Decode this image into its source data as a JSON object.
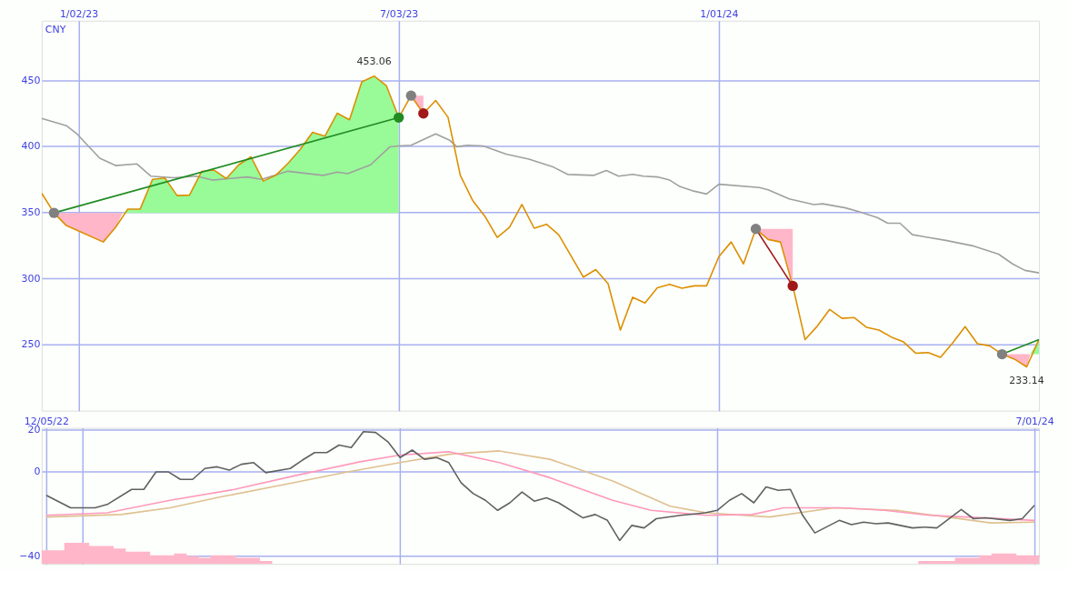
{
  "chart_data": [
    {
      "type": "line",
      "ylabel": "CNY",
      "xlim": [
        "2022-12-12",
        "2024-07-01"
      ],
      "ylim": [
        200,
        495
      ],
      "yticks": [
        250,
        300,
        350,
        400,
        450
      ],
      "xticks": [
        {
          "value": "2023-01-02",
          "label": "1/02/23"
        },
        {
          "value": "2023-07-03",
          "label": "7/03/23"
        },
        {
          "value": "2024-01-01",
          "label": "1/01/24"
        }
      ],
      "grid": true,
      "legend": false,
      "annotations": [
        {
          "text": "453.06",
          "x": "2023-06-19",
          "y": 453.06
        },
        {
          "text": "233.14",
          "x": "2024-06-24",
          "y": 233.14
        }
      ],
      "series": [
        {
          "color": "#98fb98",
          "x": [
            "2023-01-27",
            "2023-01-30",
            "2023-02-06",
            "2023-02-13",
            "2023-02-20",
            "2023-02-27",
            "2023-03-06",
            "2023-03-13",
            "2023-03-20",
            "2023-03-27",
            "2023-04-03",
            "2023-04-10",
            "2023-04-17",
            "2023-04-24",
            "2023-05-01",
            "2023-05-08",
            "2023-05-15",
            "2023-05-22",
            "2023-05-29",
            "2023-06-05",
            "2023-06-12",
            "2023-06-19",
            "2023-06-26",
            "2023-07-03"
          ],
          "values": [
            null,
            null,
            null,
            null,
            null,
            null,
            null,
            null,
            null,
            null,
            null,
            null,
            null,
            null,
            null,
            null,
            null,
            null,
            null,
            null,
            null,
            null,
            null,
            null
          ],
          "upper": [
            349.6,
            352.5,
            352.5,
            375,
            376,
            362.7,
            363,
            381,
            382,
            375.6,
            386,
            392,
            373.7,
            378,
            387,
            397.7,
            410.6,
            407.6,
            425,
            420,
            448.8,
            453.1,
            445.7,
            421.7
          ],
          "lower": [
            349.6,
            349.6,
            349.6,
            349.6,
            349.6,
            349.6,
            349.6,
            349.6,
            349.6,
            349.6,
            349.6,
            349.6,
            349.6,
            349.6,
            349.6,
            349.6,
            349.6,
            349.6,
            349.6,
            349.6,
            349.6,
            349.6,
            349.6,
            349.6
          ]
        },
        {
          "color": "#ffb6c8",
          "x": [
            "2022-12-19",
            "2022-12-26",
            "2023-01-16",
            "2023-01-23",
            "2023-01-27"
          ],
          "values": [
            null,
            null,
            null,
            null,
            null
          ],
          "lower": [
            349.6,
            340,
            327.6,
            338.7,
            349.6
          ],
          "upper": [
            349.6,
            349.6,
            349.6,
            349.6,
            349.6
          ]
        },
        {
          "color": "#ffb6c8",
          "x": [
            "2023-07-10",
            "2023-07-17"
          ],
          "values": [
            null,
            null
          ],
          "lower": [
            438.3,
            424.8
          ],
          "upper": [
            438.3,
            438.3
          ]
        },
        {
          "color": "#ffb6c8",
          "x": [
            "2024-01-22",
            "2024-01-29",
            "2024-02-05",
            "2024-02-12"
          ],
          "values": [
            null,
            null,
            null,
            null
          ],
          "lower": [
            337.5,
            329.5,
            327.6,
            294.4
          ],
          "upper": [
            337.5,
            337.5,
            337.5,
            337.5
          ]
        },
        {
          "color": "#ffb6c8",
          "x": [
            "2024-06-10",
            "2024-06-17",
            "2024-06-24",
            "2024-06-26"
          ],
          "values": [
            null,
            null,
            null,
            null
          ],
          "lower": [
            242.7,
            239,
            233.1,
            242.7
          ],
          "upper": [
            242.7,
            242.7,
            242.7,
            242.7
          ]
        },
        {
          "color": "#98fb98",
          "x": [
            "2024-06-26",
            "2024-07-01"
          ],
          "values": [
            null,
            null
          ],
          "upper": [
            242.7,
            253.8
          ],
          "lower": [
            242.7,
            242.7
          ]
        },
        {
          "color": "#a0a0a0",
          "x": [
            "2022-12-12",
            "2022-12-26",
            "2023-01-01",
            "2023-01-14",
            "2023-01-23",
            "2023-02-04",
            "2023-02-12",
            "2023-02-25",
            "2023-03-10",
            "2023-03-19",
            "2023-04-08",
            "2023-04-16",
            "2023-05-01",
            "2023-05-21",
            "2023-05-29",
            "2023-06-04",
            "2023-06-17",
            "2023-06-28",
            "2023-07-03",
            "2023-07-10",
            "2023-07-24",
            "2023-08-01",
            "2023-08-05",
            "2023-08-11",
            "2023-08-20",
            "2023-09-02",
            "2023-09-15",
            "2023-09-29",
            "2023-10-07",
            "2023-10-22",
            "2023-10-29",
            "2023-11-05",
            "2023-11-13",
            "2023-11-19",
            "2023-11-27",
            "2023-12-04",
            "2023-12-10",
            "2023-12-17",
            "2023-12-25",
            "2024-01-01",
            "2024-01-24",
            "2024-01-29",
            "2024-02-10",
            "2024-02-24",
            "2024-02-29",
            "2024-03-13",
            "2024-03-21",
            "2024-03-31",
            "2024-04-06",
            "2024-04-13",
            "2024-04-20",
            "2024-05-09",
            "2024-05-25",
            "2024-06-08",
            "2024-06-16",
            "2024-06-23",
            "2024-07-01"
          ],
          "values": [
            421.1,
            415.6,
            409.4,
            391.0,
            385.4,
            386.7,
            377.4,
            376.2,
            377.4,
            374.4,
            376.8,
            375.0,
            381.1,
            378.0,
            380.5,
            379.3,
            386.0,
            399.6,
            400.2,
            400.8,
            409.4,
            404.5,
            399.6,
            400.8,
            400.2,
            394.0,
            390.3,
            384.2,
            378.7,
            378.0,
            381.7,
            377.4,
            378.7,
            377.4,
            376.8,
            374.4,
            369.4,
            366.3,
            363.9,
            371.3,
            368.8,
            367.0,
            360.2,
            355.9,
            356.5,
            353.4,
            350.4,
            346.1,
            341.8,
            341.8,
            333.1,
            328.8,
            324.5,
            318.4,
            311.0,
            306.1,
            304.2
          ]
        },
        {
          "color": "#dd8f00",
          "x": [
            "2022-12-12",
            "2022-12-19",
            "2022-12-26",
            "2023-01-16",
            "2023-01-23",
            "2023-01-30",
            "2023-02-06",
            "2023-02-13",
            "2023-02-20",
            "2023-02-27",
            "2023-03-06",
            "2023-03-13",
            "2023-03-20",
            "2023-03-27",
            "2023-04-03",
            "2023-04-10",
            "2023-04-17",
            "2023-04-24",
            "2023-05-01",
            "2023-05-08",
            "2023-05-15",
            "2023-05-22",
            "2023-05-29",
            "2023-06-05",
            "2023-06-12",
            "2023-06-19",
            "2023-06-26",
            "2023-07-03",
            "2023-07-10",
            "2023-07-17",
            "2023-07-24",
            "2023-07-31",
            "2023-08-07",
            "2023-08-14",
            "2023-08-21",
            "2023-08-28",
            "2023-09-04",
            "2023-09-11",
            "2023-09-18",
            "2023-09-25",
            "2023-10-02",
            "2023-10-16",
            "2023-10-23",
            "2023-10-30",
            "2023-11-06",
            "2023-11-13",
            "2023-11-20",
            "2023-11-27",
            "2023-12-04",
            "2023-12-11",
            "2023-12-18",
            "2023-12-25",
            "2024-01-01",
            "2024-01-08",
            "2024-01-15",
            "2024-01-22",
            "2024-01-29",
            "2024-02-05",
            "2024-02-12",
            "2024-02-19",
            "2024-02-26",
            "2024-03-04",
            "2024-03-11",
            "2024-03-18",
            "2024-03-25",
            "2024-04-01",
            "2024-04-08",
            "2024-04-15",
            "2024-04-22",
            "2024-04-29",
            "2024-05-06",
            "2024-05-13",
            "2024-05-20",
            "2024-05-27",
            "2024-06-03",
            "2024-06-10",
            "2024-06-17",
            "2024-06-24",
            "2024-07-01"
          ],
          "values": [
            364.5,
            349.6,
            340,
            327.6,
            338.7,
            352.5,
            352.5,
            375,
            376,
            362.7,
            363,
            381,
            382,
            375.6,
            386,
            392,
            373.7,
            378,
            387,
            397.7,
            410.6,
            407.6,
            425,
            420,
            448.8,
            453.06,
            445.7,
            421.7,
            438.3,
            424.8,
            434.6,
            422,
            378,
            359,
            347,
            331,
            338.7,
            356,
            338,
            341,
            333,
            301,
            306.7,
            296,
            261,
            285.8,
            281.5,
            293,
            295.6,
            292.6,
            294.4,
            294.4,
            316.5,
            327.6,
            311,
            337.5,
            329.5,
            327.6,
            294.4,
            253.8,
            264,
            276.6,
            269.8,
            270.4,
            263,
            261,
            255.7,
            252,
            243.4,
            244,
            240.3,
            251.4,
            263.6,
            250.7,
            249,
            242.7,
            239,
            233.14,
            253.8
          ]
        },
        {
          "color": "#228b22",
          "x": [
            "2022-12-19",
            "2023-07-03"
          ],
          "values": [
            349.6,
            421.7
          ]
        },
        {
          "color": "#a01818",
          "x": [
            "2024-01-22",
            "2024-02-12"
          ],
          "values": [
            337.5,
            294.4
          ]
        },
        {
          "color": "#228b22",
          "x": [
            "2024-06-10",
            "2024-07-01"
          ],
          "values": [
            242.7,
            253.8
          ]
        },
        {
          "type": "scatter",
          "marker": "circle",
          "x": [
            "2022-12-19",
            "2023-07-03",
            "2023-07-10",
            "2023-07-17",
            "2024-01-22",
            "2024-02-12",
            "2024-06-10"
          ],
          "values": [
            349.6,
            421.7,
            438.3,
            424.8,
            337.5,
            294.4,
            242.7
          ],
          "colors": [
            "#808080",
            "#228b22",
            "#808080",
            "#a01818",
            "#808080",
            "#a01818",
            "#808080"
          ]
        }
      ]
    },
    {
      "type": "line",
      "xlim": [
        "2022-12-12",
        "2024-07-01"
      ],
      "ylim": [
        -44,
        21
      ],
      "yticks": [
        20,
        0,
        -40
      ],
      "xticks": [
        {
          "value": "2022-12-12",
          "label": "12/05/22"
        },
        {
          "value": "2023-01-02",
          "label": null
        },
        {
          "value": "2023-07-03",
          "label": null
        },
        {
          "value": "2024-01-01",
          "label": null
        },
        {
          "value": "2024-07-01",
          "label": "7/01/24"
        }
      ],
      "grid": true,
      "legend": false,
      "series": [
        {
          "type": "bar",
          "color": "#ffb6c8",
          "x": [
            "2022-12-12",
            "2022-12-19",
            "2022-12-26",
            "2023-01-02",
            "2023-01-09",
            "2023-01-16",
            "2023-01-23",
            "2023-01-30",
            "2023-02-06",
            "2023-02-13",
            "2023-02-20",
            "2023-02-27",
            "2023-03-06",
            "2023-03-13",
            "2023-03-20",
            "2023-03-27",
            "2023-04-03",
            "2023-04-10",
            "2023-04-17",
            "2024-04-29",
            "2024-05-06",
            "2024-05-13",
            "2024-05-20",
            "2024-05-27",
            "2024-06-03",
            "2024-06-10",
            "2024-06-17",
            "2024-06-24",
            "2024-07-01"
          ],
          "base": [
            -44,
            -44,
            -44,
            -44,
            -44,
            -44,
            -44,
            -44,
            -44,
            -44,
            -44,
            -44,
            -44,
            -44,
            -44,
            -44,
            -44,
            -44,
            -44,
            -44,
            -44,
            -44,
            -44,
            -44,
            -44,
            -44,
            -44,
            -44,
            -44
          ],
          "values": [
            6.5,
            6.5,
            10.1,
            10.1,
            8.6,
            8.6,
            7.4,
            5.9,
            5.9,
            4.1,
            4.1,
            5,
            3.8,
            2.9,
            4.1,
            4.1,
            2.9,
            2.9,
            1.4,
            1.4,
            1.4,
            1.4,
            2.9,
            2.9,
            4.1,
            5,
            5,
            4.1,
            4.1
          ]
        },
        {
          "color": "#e0c090",
          "x": [
            "2022-12-12",
            "2023-01-24",
            "2023-02-21",
            "2023-03-22",
            "2023-04-28",
            "2023-06-03",
            "2023-07-03",
            "2023-07-31",
            "2023-08-29",
            "2023-09-27",
            "2023-11-02",
            "2023-12-05",
            "2023-12-26",
            "2024-01-31",
            "2024-03-08",
            "2024-04-13",
            "2024-05-12",
            "2024-06-06",
            "2024-07-01"
          ],
          "values": [
            -21.6,
            -20.4,
            -17.2,
            -12,
            -6,
            0,
            4.4,
            8.4,
            10,
            6,
            -4.4,
            -16.4,
            -19.6,
            -21.6,
            -17.2,
            -18.4,
            -21.6,
            -24.4,
            -24
          ]
        },
        {
          "color": "#ff99bb",
          "x": [
            "2022-12-12",
            "2023-01-16",
            "2023-02-21",
            "2023-03-30",
            "2023-05-05",
            "2023-06-10",
            "2023-07-03",
            "2023-07-31",
            "2023-08-29",
            "2023-09-27",
            "2023-11-02",
            "2023-11-24",
            "2023-12-26",
            "2024-01-21",
            "2024-02-08",
            "2024-03-12",
            "2024-04-06",
            "2024-05-02",
            "2024-05-23",
            "2024-07-01"
          ],
          "values": [
            -20.8,
            -19.6,
            -13.6,
            -8.4,
            -1.6,
            4.8,
            8,
            9.6,
            4.4,
            -2.8,
            -13.6,
            -18.4,
            -20.8,
            -20.4,
            -17.2,
            -17.2,
            -18.4,
            -20.8,
            -21.6,
            -23.2
          ]
        },
        {
          "color": "#606060",
          "x": [
            "2022-12-12",
            "2022-12-26",
            "2023-01-09",
            "2023-01-16",
            "2023-01-30",
            "2023-02-06",
            "2023-02-13",
            "2023-02-20",
            "2023-02-27",
            "2023-03-06",
            "2023-03-13",
            "2023-03-20",
            "2023-03-27",
            "2023-04-03",
            "2023-04-10",
            "2023-04-17",
            "2023-05-01",
            "2023-05-08",
            "2023-05-15",
            "2023-05-22",
            "2023-05-29",
            "2023-06-05",
            "2023-06-12",
            "2023-06-19",
            "2023-06-26",
            "2023-07-03",
            "2023-07-10",
            "2023-07-17",
            "2023-07-24",
            "2023-07-31",
            "2023-08-07",
            "2023-08-14",
            "2023-08-21",
            "2023-08-28",
            "2023-09-04",
            "2023-09-11",
            "2023-09-18",
            "2023-09-25",
            "2023-10-02",
            "2023-10-16",
            "2023-10-23",
            "2023-10-30",
            "2023-11-06",
            "2023-11-13",
            "2023-11-20",
            "2023-11-27",
            "2023-12-11",
            "2023-12-25",
            "2024-01-01",
            "2024-01-08",
            "2024-01-15",
            "2024-01-22",
            "2024-01-29",
            "2024-02-05",
            "2024-02-12",
            "2024-02-19",
            "2024-02-26",
            "2024-03-11",
            "2024-03-18",
            "2024-03-25",
            "2024-04-01",
            "2024-04-08",
            "2024-04-22",
            "2024-04-29",
            "2024-05-06",
            "2024-05-20",
            "2024-05-27",
            "2024-06-03",
            "2024-06-17",
            "2024-06-24",
            "2024-07-01"
          ],
          "values": [
            -11.2,
            -17.2,
            -17.2,
            -15.6,
            -8.4,
            -8.4,
            0,
            0,
            -3.6,
            -3.6,
            1.6,
            2.4,
            0.8,
            3.6,
            4.4,
            -0.4,
            1.6,
            5.6,
            9.2,
            9.2,
            12.8,
            11.6,
            19.2,
            18.8,
            14.4,
            6.8,
            10.4,
            6,
            6.8,
            4.4,
            -5.2,
            -10.4,
            -13.6,
            -18.4,
            -14.8,
            -9.6,
            -14,
            -12.4,
            -14.8,
            -22,
            -20.4,
            -23.2,
            -32.8,
            -25.6,
            -26.8,
            -22.4,
            -20.8,
            -19.6,
            -18.4,
            -13.6,
            -10.4,
            -14.8,
            -7.2,
            -8.8,
            -8.4,
            -20.8,
            -29.2,
            -23.2,
            -25.2,
            -24,
            -24.8,
            -24.4,
            -26.8,
            -26.4,
            -26.8,
            -18,
            -22.4,
            -22,
            -23.2,
            -22.4,
            -16
          ]
        }
      ]
    }
  ]
}
